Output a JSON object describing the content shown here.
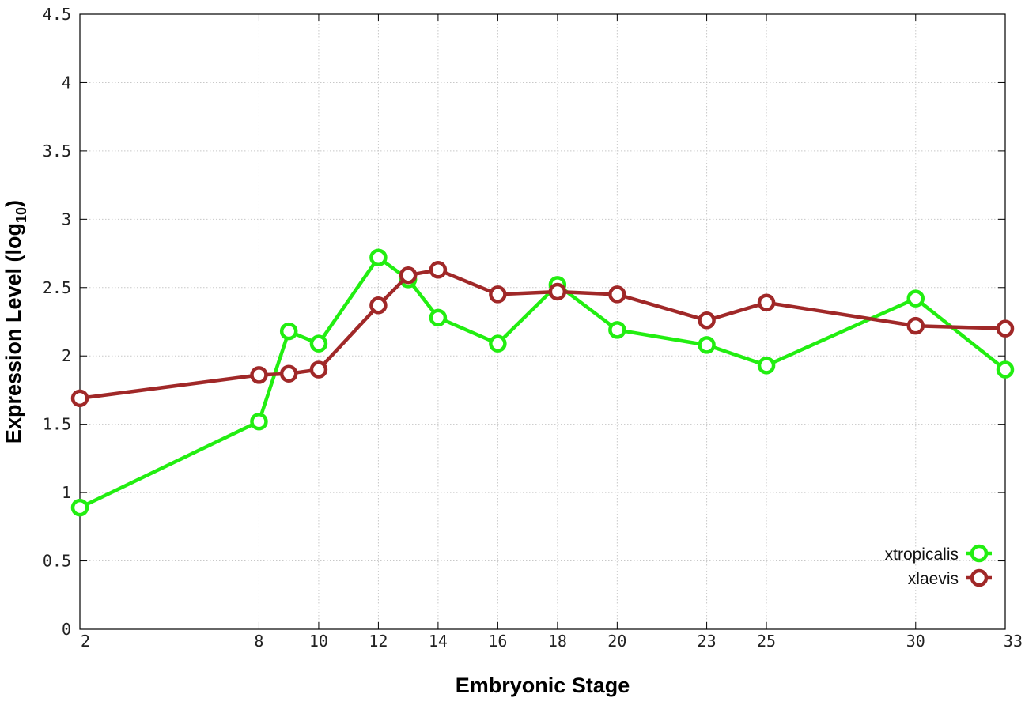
{
  "chart_data": {
    "type": "line",
    "xlabel": "Embryonic Stage",
    "ylabel": "Expression Level (log",
    "ylabel_subscript": "10",
    "ylabel_suffix": ")",
    "ylim": [
      0,
      4.5
    ],
    "xlim": [
      2,
      33
    ],
    "grid": true,
    "legend_position": "bottom-right",
    "xticks": [
      {
        "label": "2"
      },
      {
        "label": "8"
      },
      {
        "label": "10"
      },
      {
        "label": "12"
      },
      {
        "label": "14"
      },
      {
        "label": "16"
      },
      {
        "label": "18"
      },
      {
        "label": "20"
      },
      {
        "label": "23"
      },
      {
        "label": "25"
      },
      {
        "label": "30"
      },
      {
        "label": "33"
      }
    ],
    "yticks": [
      {
        "value": 0,
        "label": "0"
      },
      {
        "value": 0.5,
        "label": "0.5"
      },
      {
        "value": 1,
        "label": "1"
      },
      {
        "value": 1.5,
        "label": "1.5"
      },
      {
        "value": 2,
        "label": "2"
      },
      {
        "value": 2.5,
        "label": "2.5"
      },
      {
        "value": 3,
        "label": "3"
      },
      {
        "value": 3.5,
        "label": "3.5"
      },
      {
        "value": 4,
        "label": "4"
      },
      {
        "value": 4.5,
        "label": "4.5"
      }
    ],
    "series": [
      {
        "name": "xtropicalis",
        "color": "#22ee11",
        "x": [
          2,
          8,
          9,
          10,
          12,
          13,
          14,
          16,
          18,
          20,
          23,
          25,
          30,
          33
        ],
        "y": [
          0.89,
          1.52,
          2.18,
          2.09,
          2.72,
          2.56,
          2.28,
          2.09,
          2.52,
          2.19,
          2.08,
          1.93,
          2.42,
          1.9
        ]
      },
      {
        "name": "xlaevis",
        "color": "#a02828",
        "x": [
          2,
          8,
          9,
          10,
          12,
          13,
          14,
          16,
          18,
          20,
          23,
          25,
          30,
          33
        ],
        "y": [
          1.69,
          1.86,
          1.87,
          1.9,
          2.37,
          2.59,
          2.63,
          2.45,
          2.47,
          2.45,
          2.26,
          2.39,
          2.22,
          2.2
        ]
      }
    ]
  }
}
